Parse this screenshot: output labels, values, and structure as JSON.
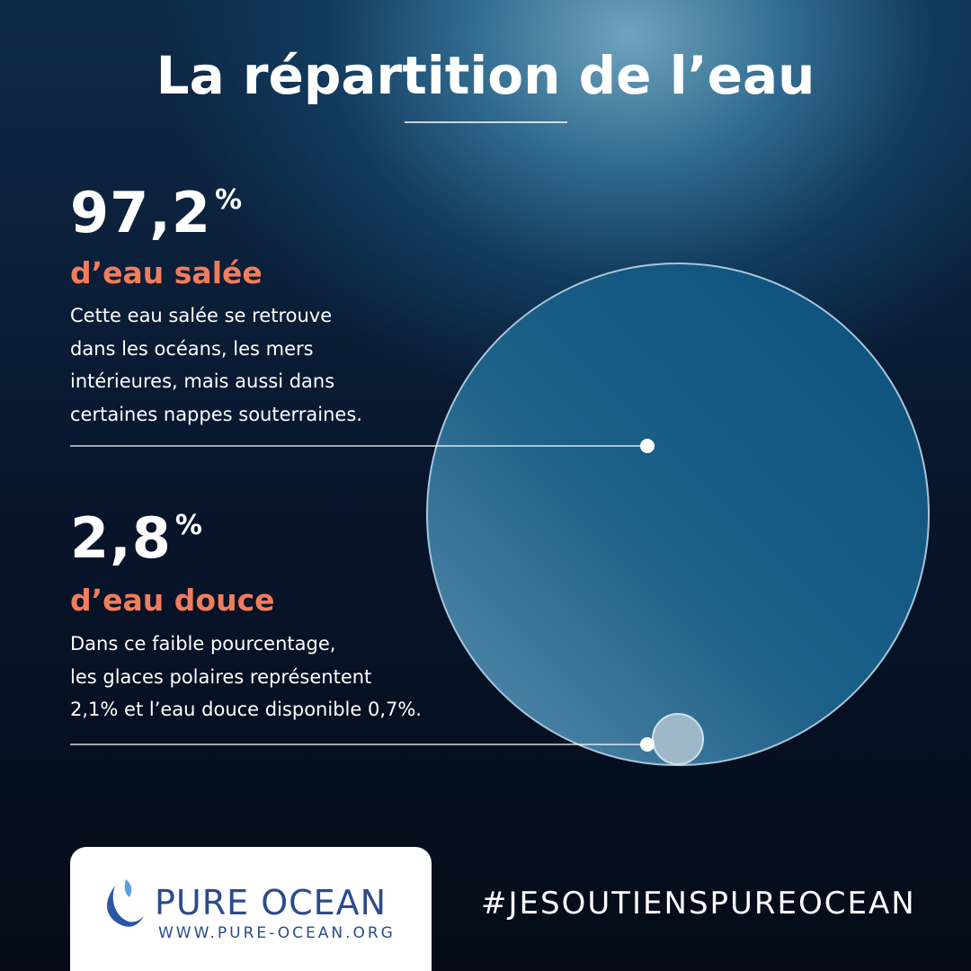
{
  "header": {
    "title": "La répartition de l’eau"
  },
  "stats": [
    {
      "value": "97,2",
      "unit": "%",
      "label": "d’eau salée",
      "description": [
        "Cette eau salée se retrouve",
        "dans les océans, les mers",
        "intérieures, mais aussi dans",
        "certaines nappes souterraines."
      ]
    },
    {
      "value": "2,8",
      "unit": "%",
      "label": "d’eau douce",
      "description": [
        "Dans ce faible pourcentage,",
        "les glaces polaires représentent",
        "2,1% et l’eau douce disponible 0,7%."
      ]
    }
  ],
  "footer": {
    "brand": "PURE OCEAN",
    "url": "WWW.PURE-OCEAN.ORG",
    "hashtag": "#JESOUTIENSPUREOCEAN"
  }
}
